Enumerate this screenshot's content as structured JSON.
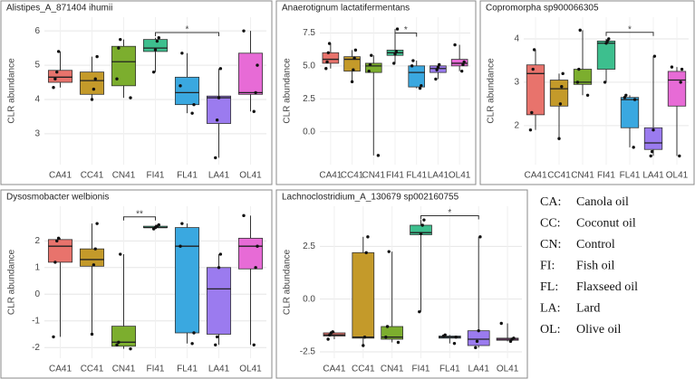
{
  "chart_data": [
    {
      "type": "box",
      "title": "Alistipes_A_871404 ihumii",
      "ylabel": "CLR abundance",
      "categories": [
        "CA41",
        "CC41",
        "CN41",
        "FI41",
        "FL41",
        "LA41",
        "OL41"
      ],
      "colors": [
        "#e8736c",
        "#c49a2a",
        "#7cae2e",
        "#3dbf8e",
        "#3aa8e0",
        "#9b7bef",
        "#e76bd6"
      ],
      "ylim": [
        2.1,
        6.4
      ],
      "yticks": [
        3,
        4,
        5,
        6
      ],
      "grid": true,
      "boxes": [
        {
          "min": 4.35,
          "q1": 4.5,
          "median": 4.65,
          "q3": 4.85,
          "max": 5.4,
          "points": [
            4.35,
            4.6,
            4.8,
            5.4
          ]
        },
        {
          "min": 4.0,
          "q1": 4.15,
          "median": 4.55,
          "q3": 4.8,
          "max": 5.25,
          "points": [
            4.0,
            4.3,
            4.6,
            5.25
          ]
        },
        {
          "min": 4.05,
          "q1": 4.4,
          "median": 5.1,
          "q3": 5.55,
          "max": 5.75,
          "points": [
            4.05,
            4.6,
            5.5,
            5.75
          ]
        },
        {
          "min": 4.8,
          "q1": 5.4,
          "median": 5.5,
          "q3": 5.75,
          "max": 5.8,
          "points": [
            4.8,
            5.45,
            5.7,
            5.8
          ]
        },
        {
          "min": 3.6,
          "q1": 3.85,
          "median": 4.2,
          "q3": 4.65,
          "max": 5.35,
          "points": [
            3.6,
            3.85,
            4.4,
            5.35
          ]
        },
        {
          "min": 2.3,
          "q1": 3.3,
          "median": 4.05,
          "q3": 4.1,
          "max": 4.9,
          "points": [
            2.3,
            3.4,
            4.05,
            4.9
          ]
        },
        {
          "min": 3.65,
          "q1": 4.15,
          "median": 4.2,
          "q3": 5.35,
          "max": 6.0,
          "points": [
            3.65,
            4.2,
            5.0,
            6.0
          ]
        }
      ],
      "bracket": {
        "from": "FI41",
        "to": "LA41",
        "y": 5.95,
        "label": "*"
      }
    },
    {
      "type": "box",
      "title": "Anaerotignum lactatifermentans",
      "ylabel": "CLR abundance",
      "categories": [
        "CA41",
        "CC41",
        "CN41",
        "FI41",
        "FL41",
        "LA41",
        "OL41"
      ],
      "colors": [
        "#e8736c",
        "#c49a2a",
        "#7cae2e",
        "#3dbf8e",
        "#3aa8e0",
        "#9b7bef",
        "#e76bd6"
      ],
      "ylim": [
        -2.5,
        8.7
      ],
      "yticks": [
        {
          "value": 0,
          "label": "0.0"
        },
        2.5,
        {
          "value": 5,
          "label": "5.0"
        },
        7.5
      ],
      "grid": true,
      "boxes": [
        {
          "min": 4.8,
          "q1": 5.2,
          "median": 5.5,
          "q3": 6.0,
          "max": 6.7,
          "points": [
            4.8,
            5.3,
            6.0,
            6.7
          ]
        },
        {
          "min": 3.8,
          "q1": 4.6,
          "median": 5.5,
          "q3": 5.7,
          "max": 6.2,
          "points": [
            3.8,
            4.7,
            5.6,
            6.2
          ]
        },
        {
          "min": -1.8,
          "q1": 4.5,
          "median": 5.0,
          "q3": 5.2,
          "max": 5.8,
          "points": [
            -1.8,
            4.6,
            5.1,
            5.8
          ]
        },
        {
          "min": 5.2,
          "q1": 5.8,
          "median": 6.0,
          "q3": 6.2,
          "max": 7.8,
          "points": [
            5.2,
            5.9,
            6.1,
            7.8
          ]
        },
        {
          "min": 3.3,
          "q1": 3.4,
          "median": 4.5,
          "q3": 5.0,
          "max": 5.4,
          "points": [
            3.3,
            3.5,
            5.0,
            5.4
          ]
        },
        {
          "min": 4.0,
          "q1": 4.5,
          "median": 4.8,
          "q3": 5.0,
          "max": 5.1,
          "points": [
            4.0,
            4.7,
            4.9,
            5.1
          ]
        },
        {
          "min": 4.6,
          "q1": 5.0,
          "median": 5.2,
          "q3": 5.5,
          "max": 6.6,
          "points": [
            4.6,
            5.1,
            5.3,
            6.6
          ]
        }
      ],
      "bracket": {
        "from": "FI41",
        "to": "FL41",
        "y": 7.5,
        "label": "*"
      }
    },
    {
      "type": "box",
      "title": "Copromorpha sp900066305",
      "ylabel": "CLR abundance",
      "categories": [
        "CA41",
        "CC41",
        "CN41",
        "FI41",
        "FL41",
        "LA41",
        "OL41"
      ],
      "colors": [
        "#e8736c",
        "#c49a2a",
        "#7cae2e",
        "#3dbf8e",
        "#3aa8e0",
        "#9b7bef",
        "#e76bd6"
      ],
      "ylim": [
        1.1,
        4.5
      ],
      "yticks": [
        2,
        3,
        4
      ],
      "grid": true,
      "boxes": [
        {
          "min": 1.9,
          "q1": 2.25,
          "median": 3.2,
          "q3": 3.4,
          "max": 3.75,
          "points": [
            1.9,
            2.3,
            3.3,
            3.75
          ]
        },
        {
          "min": 1.7,
          "q1": 2.45,
          "median": 2.85,
          "q3": 3.05,
          "max": 3.2,
          "points": [
            1.7,
            2.5,
            2.9,
            3.2
          ]
        },
        {
          "min": 2.7,
          "q1": 2.95,
          "median": 3.0,
          "q3": 3.3,
          "max": 4.2,
          "points": [
            2.7,
            3.0,
            3.3,
            4.2
          ]
        },
        {
          "min": 3.0,
          "q1": 3.3,
          "median": 3.9,
          "q3": 3.95,
          "max": 4.0,
          "points": [
            3.0,
            3.9,
            3.95,
            4.0
          ]
        },
        {
          "min": 1.5,
          "q1": 1.95,
          "median": 2.6,
          "q3": 2.65,
          "max": 2.7,
          "points": [
            1.5,
            2.6,
            2.65,
            2.7
          ]
        },
        {
          "min": 1.3,
          "q1": 1.45,
          "median": 1.6,
          "q3": 1.95,
          "max": 3.6,
          "points": [
            1.3,
            1.4,
            1.9,
            3.6
          ]
        },
        {
          "min": 1.3,
          "q1": 2.45,
          "median": 3.05,
          "q3": 3.25,
          "max": 3.35,
          "points": [
            1.3,
            3.0,
            3.3,
            3.35
          ]
        }
      ],
      "bracket": {
        "from": "FI41",
        "to": "LA41",
        "y": 4.15,
        "label": "*"
      }
    },
    {
      "type": "box",
      "title": "Dysosmobacter welbionis",
      "ylabel": "CLR abundance",
      "categories": [
        "CA41",
        "CC41",
        "CN41",
        "FI41",
        "FL41",
        "LA41",
        "OL41"
      ],
      "colors": [
        "#e8736c",
        "#c49a2a",
        "#7cae2e",
        "#3dbf8e",
        "#3aa8e0",
        "#9b7bef",
        "#e76bd6"
      ],
      "ylim": [
        -2.4,
        3.3
      ],
      "yticks": [
        -2,
        -1,
        0,
        1,
        2
      ],
      "grid": true,
      "boxes": [
        {
          "min": -1.6,
          "q1": 1.2,
          "median": 1.8,
          "q3": 2.05,
          "max": 2.1,
          "points": [
            -1.6,
            1.2,
            2.0,
            2.1
          ]
        },
        {
          "min": -1.5,
          "q1": 1.05,
          "median": 1.3,
          "q3": 1.7,
          "max": 2.65,
          "points": [
            -1.5,
            1.1,
            1.7,
            2.65
          ]
        },
        {
          "min": -2.05,
          "q1": -1.95,
          "median": -1.8,
          "q3": -1.2,
          "max": 1.5,
          "points": [
            -2.05,
            -1.9,
            -1.8,
            1.5
          ]
        },
        {
          "min": 2.45,
          "q1": 2.5,
          "median": 2.5,
          "q3": 2.55,
          "max": 2.6,
          "points": [
            2.45,
            2.5,
            2.55,
            2.6
          ]
        },
        {
          "min": -1.85,
          "q1": -1.45,
          "median": 1.8,
          "q3": 2.5,
          "max": 2.65,
          "points": [
            -1.85,
            -1.45,
            1.8,
            2.65
          ]
        },
        {
          "min": -1.9,
          "q1": -1.5,
          "median": 0.2,
          "q3": 1.0,
          "max": 1.5,
          "points": [
            -1.9,
            -1.6,
            1.0,
            1.5
          ]
        },
        {
          "min": -1.9,
          "q1": 0.95,
          "median": 1.8,
          "q3": 2.1,
          "max": 2.95,
          "points": [
            -1.9,
            1.0,
            1.8,
            2.95
          ]
        }
      ],
      "bracket": {
        "from": "CN41",
        "to": "FI41",
        "y": 2.9,
        "label": "**"
      }
    },
    {
      "type": "box",
      "title": "Lachnoclostridium_A_130679 sp002160755",
      "ylabel": "CLR abundance",
      "categories": [
        "CA41",
        "CC41",
        "CN41",
        "FI41",
        "FL41",
        "LA41",
        "OL41"
      ],
      "colors": [
        "#e8736c",
        "#c49a2a",
        "#7cae2e",
        "#3dbf8e",
        "#3aa8e0",
        "#9b7bef",
        "#e76bd6"
      ],
      "ylim": [
        -2.8,
        4.4
      ],
      "yticks": [
        -2.5,
        {
          "value": 0,
          "label": "0.0"
        },
        2.5
      ],
      "grid": true,
      "boxes": [
        {
          "min": -1.9,
          "q1": -1.75,
          "median": -1.7,
          "q3": -1.6,
          "max": -1.55,
          "points": [
            -1.9,
            -1.7,
            -1.6,
            -1.55
          ]
        },
        {
          "min": -2.2,
          "q1": -1.85,
          "median": -1.8,
          "q3": 2.2,
          "max": 2.95,
          "points": [
            -2.2,
            -1.8,
            2.2,
            2.95
          ]
        },
        {
          "min": -2.05,
          "q1": -1.9,
          "median": -1.8,
          "q3": -1.3,
          "max": 2.25,
          "points": [
            -2.05,
            -1.8,
            -1.3,
            2.25
          ]
        },
        {
          "min": -0.6,
          "q1": 3.05,
          "median": 3.15,
          "q3": 3.5,
          "max": 3.75,
          "points": [
            -0.6,
            3.1,
            3.5,
            3.75
          ]
        },
        {
          "min": -2.1,
          "q1": -1.85,
          "median": -1.8,
          "q3": -1.75,
          "max": -1.7,
          "points": [
            -2.1,
            -1.8,
            -1.75,
            -1.7
          ]
        },
        {
          "min": -2.3,
          "q1": -2.2,
          "median": -1.9,
          "q3": -1.5,
          "max": 2.95,
          "points": [
            -2.3,
            -2.0,
            -1.5,
            2.95
          ]
        },
        {
          "min": -2.0,
          "q1": -1.95,
          "median": -1.9,
          "q3": -1.85,
          "max": -1.15,
          "points": [
            -2.0,
            -1.9,
            -1.85,
            -1.15
          ]
        }
      ],
      "bracket": {
        "from": "FI41",
        "to": "LA41",
        "y": 3.95,
        "label": "*"
      }
    }
  ],
  "legend": [
    {
      "code": "CA:",
      "label": "Canola oil"
    },
    {
      "code": "CC:",
      "label": "Coconut oil"
    },
    {
      "code": "CN:",
      "label": "Control"
    },
    {
      "code": "FI:",
      "label": "Fish oil"
    },
    {
      "code": "FL:",
      "label": "Flaxseed oil"
    },
    {
      "code": "LA:",
      "label": "Lard"
    },
    {
      "code": "OL:",
      "label": "Olive oil"
    }
  ]
}
